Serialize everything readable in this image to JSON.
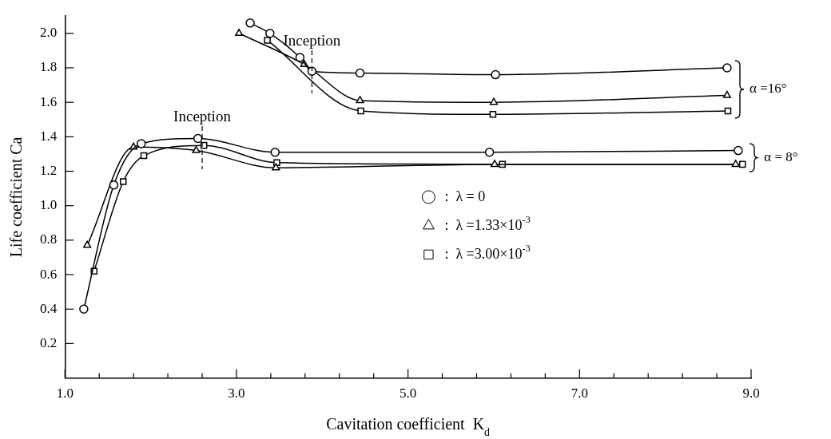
{
  "chart_data": {
    "type": "line",
    "xlabel": "Cavitation coefficient  K$_{d}$",
    "ylabel": "Life coefficient Ca",
    "xlim": [
      1.0,
      9.0
    ],
    "xticks": [
      {
        "value": 1,
        "label": "1.0"
      },
      {
        "value": 1.4,
        "label": null
      },
      {
        "value": 1.8,
        "label": null
      },
      {
        "value": 2.2,
        "label": null
      },
      {
        "value": 2.6,
        "label": null
      },
      {
        "value": 3,
        "label": "3.0"
      },
      {
        "value": 3.4,
        "label": null
      },
      {
        "value": 3.8,
        "label": null
      },
      {
        "value": 4.2,
        "label": null
      },
      {
        "value": 4.6,
        "label": null
      },
      {
        "value": 5,
        "label": "5.0"
      },
      {
        "value": 5.4,
        "label": null
      },
      {
        "value": 5.8,
        "label": null
      },
      {
        "value": 6.2,
        "label": null
      },
      {
        "value": 6.6,
        "label": null
      },
      {
        "value": 7,
        "label": "7.0"
      },
      {
        "value": 7.4,
        "label": null
      },
      {
        "value": 7.8,
        "label": null
      },
      {
        "value": 8.2,
        "label": null
      },
      {
        "value": 8.6,
        "label": null
      },
      {
        "value": 9,
        "label": "9.0"
      }
    ],
    "ylim": [
      0,
      2.1
    ],
    "yticks": [
      0.2,
      0.4,
      0.6,
      0.8,
      {
        "value": 1,
        "label": "1.0"
      },
      1.2,
      1.4,
      1.6,
      1.8,
      {
        "value": 2,
        "label": "2.0"
      }
    ],
    "grid": false,
    "legend": "center",
    "line_style": "solid",
    "series": [
      {
        "name": ":  λ = 0",
        "marker": "circle",
        "color": "#000000",
        "x": [
          1.22,
          1.57,
          1.89,
          2.55,
          3.45,
          5.95,
          8.85
        ],
        "values": [
          0.4,
          1.12,
          1.36,
          1.39,
          1.31,
          1.31,
          1.32
        ]
      },
      {
        "name": ":  λ =1.33×10$^{-3}$",
        "marker": "triangle",
        "color": "#000000",
        "x": [
          1.26,
          1.8,
          2.53,
          3.46,
          6.01,
          8.82
        ],
        "values": [
          0.77,
          1.34,
          1.32,
          1.22,
          1.24,
          1.24
        ]
      },
      {
        "name": ":  λ =3.00×10$^{-3}$",
        "marker": "square",
        "color": "#000000",
        "x": [
          1.34,
          1.68,
          1.92,
          2.62,
          3.47,
          6.1,
          8.9
        ],
        "values": [
          0.62,
          1.14,
          1.29,
          1.35,
          1.25,
          1.24,
          1.24
        ]
      },
      {
        "marker": "circle",
        "color": "#000000",
        "x": [
          3.16,
          3.39,
          3.74,
          3.88,
          4.44,
          6.02,
          8.72
        ],
        "values": [
          2.06,
          2.0,
          1.86,
          1.78,
          1.77,
          1.76,
          1.8
        ]
      },
      {
        "marker": "triangle",
        "color": "#000000",
        "x": [
          3.03,
          3.79,
          4.44,
          6.0,
          8.72
        ],
        "values": [
          2.0,
          1.82,
          1.61,
          1.6,
          1.64
        ]
      },
      {
        "marker": "square",
        "color": "#000000",
        "x": [
          3.36,
          3.76,
          4.45,
          5.99,
          8.73
        ],
        "values": [
          1.96,
          null,
          1.55,
          1.53,
          1.55
        ]
      }
    ],
    "annotations": [
      {
        "text": "Inception",
        "x": 3.88,
        "y": 1.8
      },
      {
        "text": "Inception",
        "x": 2.6,
        "y": 1.36
      },
      "α =16°",
      "α = 8°"
    ]
  }
}
